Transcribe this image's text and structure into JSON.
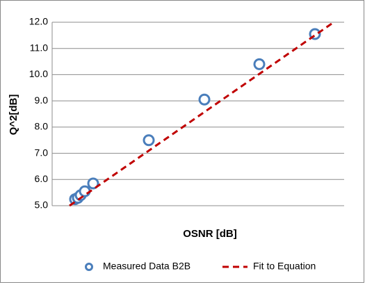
{
  "chart_data": {
    "type": "scatter",
    "xlabel": "OSNR [dB]",
    "ylabel": "Q^2[dB]",
    "xlim": [
      0,
      21
    ],
    "ylim": [
      5,
      12
    ],
    "yticks": [
      {
        "value": 5,
        "label": "5.0"
      },
      {
        "value": 6,
        "label": "6.0"
      },
      {
        "value": 7,
        "label": "7.0"
      },
      {
        "value": 8,
        "label": "8.0"
      },
      {
        "value": 9,
        "label": "9.0"
      },
      {
        "value": 10,
        "label": "10.0"
      },
      {
        "value": 11,
        "label": "11.0"
      },
      {
        "value": 12,
        "label": "12.0"
      }
    ],
    "grid": true,
    "legend": "bottom",
    "series": [
      {
        "name": "Measured Data B2B",
        "color": "#4a7ebb",
        "style": "markers",
        "x": [
          1.65,
          1.85,
          2.05,
          2.35,
          2.95,
          6.95,
          10.95,
          14.9,
          18.9
        ],
        "values": [
          5.25,
          5.3,
          5.4,
          5.55,
          5.85,
          7.5,
          9.05,
          10.4,
          11.55
        ]
      },
      {
        "name": "Fit to Equation",
        "color": "#c00000",
        "style": "dashed",
        "x": [
          1.25,
          20.25
        ],
        "values": [
          5.0,
          12.0
        ]
      }
    ]
  }
}
